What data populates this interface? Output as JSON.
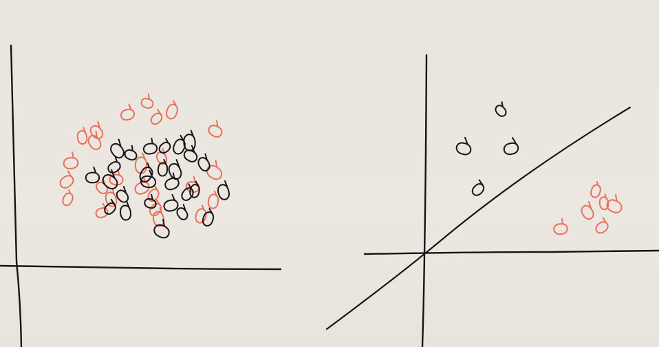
{
  "colors": {
    "paper": "#ebe6e0",
    "black_ink": "#161616",
    "red_ink": "#e8715a"
  },
  "panels": [
    {
      "name": "not-linearly-separable",
      "axes": true,
      "separator_line": false,
      "points": [
        {
          "c": "red",
          "x": -0.53,
          "y": 0.72
        },
        {
          "c": "red",
          "x": -0.04,
          "y": 1.0
        },
        {
          "c": "red",
          "x": -0.23,
          "y": 0.89
        },
        {
          "c": "red",
          "x": 0.05,
          "y": 0.85
        },
        {
          "c": "red",
          "x": 0.2,
          "y": 0.92
        },
        {
          "c": "red",
          "x": -0.67,
          "y": 0.67
        },
        {
          "c": "red",
          "x": -0.55,
          "y": 0.62
        },
        {
          "c": "red",
          "x": 0.62,
          "y": 0.73
        },
        {
          "c": "red",
          "x": -0.78,
          "y": 0.42
        },
        {
          "c": "red",
          "x": -0.82,
          "y": 0.24
        },
        {
          "c": "red",
          "x": -0.81,
          "y": 0.07
        },
        {
          "c": "red",
          "x": -0.1,
          "y": 0.4
        },
        {
          "c": "red",
          "x": 0.1,
          "y": 0.47
        },
        {
          "c": "red",
          "x": 0.61,
          "y": 0.33
        },
        {
          "c": "red",
          "x": -0.34,
          "y": 0.26
        },
        {
          "c": "red",
          "x": -0.09,
          "y": 0.18
        },
        {
          "c": "red",
          "x": 0.02,
          "y": 0.11
        },
        {
          "c": "red",
          "x": 0.6,
          "y": 0.05
        },
        {
          "c": "red",
          "x": -0.39,
          "y": 0.07
        },
        {
          "c": "red",
          "x": -0.48,
          "y": 0.18
        },
        {
          "c": "red",
          "x": 0.4,
          "y": 0.19
        },
        {
          "c": "red",
          "x": -0.48,
          "y": -0.06
        },
        {
          "c": "red",
          "x": 0.04,
          "y": -0.03
        },
        {
          "c": "red",
          "x": 0.48,
          "y": -0.09
        },
        {
          "c": "red",
          "x": 0.07,
          "y": -0.12
        },
        {
          "c": "black",
          "x": -0.33,
          "y": 0.54
        },
        {
          "c": "black",
          "x": -0.2,
          "y": 0.5
        },
        {
          "c": "black",
          "x": -0.01,
          "y": 0.56
        },
        {
          "c": "black",
          "x": 0.13,
          "y": 0.57
        },
        {
          "c": "black",
          "x": 0.27,
          "y": 0.58
        },
        {
          "c": "black",
          "x": 0.37,
          "y": 0.62
        },
        {
          "c": "black",
          "x": 0.51,
          "y": 0.41
        },
        {
          "c": "black",
          "x": 0.38,
          "y": 0.49
        },
        {
          "c": "black",
          "x": -0.57,
          "y": 0.28
        },
        {
          "c": "black",
          "x": -0.36,
          "y": 0.38
        },
        {
          "c": "black",
          "x": -0.05,
          "y": 0.31
        },
        {
          "c": "black",
          "x": 0.11,
          "y": 0.36
        },
        {
          "c": "black",
          "x": 0.23,
          "y": 0.34
        },
        {
          "c": "black",
          "x": -0.4,
          "y": 0.24
        },
        {
          "c": "black",
          "x": -0.03,
          "y": 0.24
        },
        {
          "c": "black",
          "x": 0.2,
          "y": 0.22
        },
        {
          "c": "black",
          "x": 0.35,
          "y": 0.12
        },
        {
          "c": "black",
          "x": 0.42,
          "y": 0.15
        },
        {
          "c": "black",
          "x": 0.7,
          "y": 0.14
        },
        {
          "c": "black",
          "x": -0.28,
          "y": 0.1
        },
        {
          "c": "black",
          "x": -0.01,
          "y": 0.03
        },
        {
          "c": "black",
          "x": 0.19,
          "y": 0.01
        },
        {
          "c": "black",
          "x": -0.4,
          "y": -0.02
        },
        {
          "c": "black",
          "x": 0.55,
          "y": -0.12
        },
        {
          "c": "black",
          "x": -0.25,
          "y": -0.06
        },
        {
          "c": "black",
          "x": 0.3,
          "y": -0.07
        },
        {
          "c": "black",
          "x": 0.1,
          "y": -0.24
        }
      ]
    },
    {
      "name": "linearly-separable",
      "axes": true,
      "separator_line": true,
      "points": [
        {
          "c": "black",
          "x": 0.36,
          "y": 0.95
        },
        {
          "c": "black",
          "x": 0.18,
          "y": 0.7
        },
        {
          "c": "black",
          "x": 0.41,
          "y": 0.7
        },
        {
          "c": "black",
          "x": 0.25,
          "y": 0.43
        },
        {
          "c": "red",
          "x": 0.82,
          "y": 0.42
        },
        {
          "c": "red",
          "x": 0.86,
          "y": 0.34
        },
        {
          "c": "red",
          "x": 0.78,
          "y": 0.28
        },
        {
          "c": "red",
          "x": 0.91,
          "y": 0.32
        },
        {
          "c": "red",
          "x": 0.65,
          "y": 0.17
        },
        {
          "c": "red",
          "x": 0.85,
          "y": 0.18
        }
      ]
    }
  ]
}
